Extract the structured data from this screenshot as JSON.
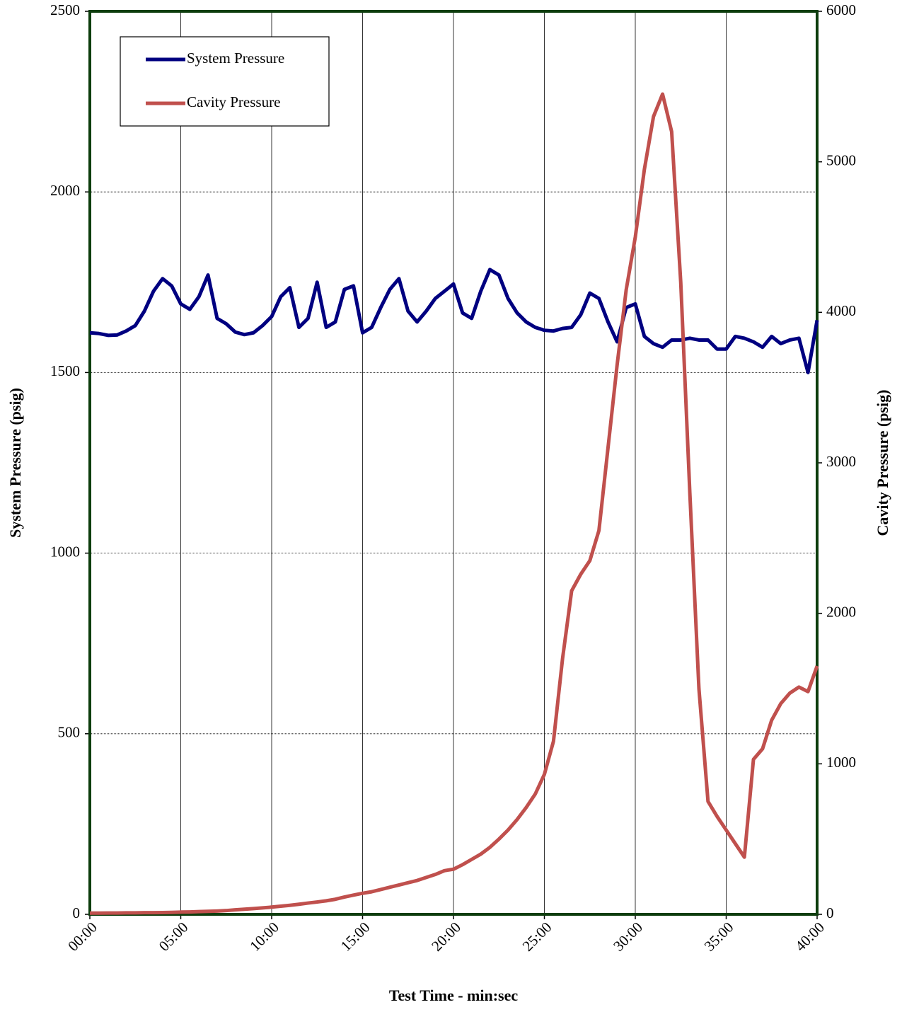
{
  "chart_data": {
    "type": "line",
    "xlabel": "Test Time - min:sec",
    "ylabel": "System Pressure (psig)",
    "y2label": "Cavity Pressure (psig)",
    "x": [
      0,
      0.5,
      1,
      1.5,
      2,
      2.5,
      3,
      3.5,
      4,
      4.5,
      5,
      5.5,
      6,
      6.5,
      7,
      7.5,
      8,
      8.5,
      9,
      9.5,
      10,
      10.5,
      11,
      11.5,
      12,
      12.5,
      13,
      13.5,
      14,
      14.5,
      15,
      15.5,
      16,
      16.5,
      17,
      17.5,
      18,
      18.5,
      19,
      19.5,
      20,
      20.5,
      21,
      21.5,
      22,
      22.5,
      23,
      23.5,
      24,
      24.5,
      25,
      25.5,
      26,
      26.5,
      27,
      27.5,
      28,
      28.5,
      29,
      29.5,
      30,
      30.5,
      31,
      31.5,
      32,
      32.5,
      33,
      33.5,
      34,
      34.5,
      35,
      35.5,
      36,
      36.5,
      37,
      37.5,
      38,
      38.5,
      39,
      39.5,
      40
    ],
    "series": [
      {
        "name": "System Pressure",
        "color": "#000080",
        "axis": "y",
        "values": [
          1610,
          1608,
          1603,
          1604,
          1615,
          1630,
          1670,
          1725,
          1760,
          1740,
          1690,
          1675,
          1710,
          1770,
          1650,
          1635,
          1612,
          1605,
          1610,
          1630,
          1655,
          1710,
          1735,
          1625,
          1650,
          1750,
          1625,
          1640,
          1730,
          1740,
          1610,
          1625,
          1680,
          1730,
          1760,
          1670,
          1640,
          1670,
          1705,
          1725,
          1745,
          1665,
          1650,
          1725,
          1785,
          1770,
          1705,
          1665,
          1640,
          1625,
          1617,
          1615,
          1622,
          1625,
          1660,
          1720,
          1705,
          1640,
          1585,
          1680,
          1690,
          1600,
          1580,
          1570,
          1590,
          1590,
          1595,
          1590,
          1590,
          1565,
          1565,
          1600,
          1595,
          1585,
          1570,
          1600,
          1580,
          1590,
          1595,
          1500,
          1645
        ]
      },
      {
        "name": "Cavity Pressure",
        "color": "#c0504d",
        "axis": "y2",
        "values": [
          8,
          8,
          9,
          9,
          10,
          10,
          11,
          11,
          12,
          13,
          15,
          16,
          18,
          20,
          22,
          25,
          30,
          34,
          38,
          43,
          48,
          54,
          60,
          67,
          75,
          82,
          90,
          100,
          115,
          128,
          140,
          150,
          165,
          180,
          195,
          210,
          225,
          245,
          265,
          290,
          300,
          330,
          365,
          400,
          445,
          500,
          560,
          630,
          710,
          800,
          930,
          1150,
          1700,
          2150,
          2260,
          2350,
          2550,
          3100,
          3650,
          4150,
          4500,
          4950,
          5300,
          5450,
          5200,
          4200,
          2800,
          1500,
          750,
          650,
          560,
          470,
          380,
          1030,
          1100,
          1290,
          1400,
          1470,
          1510,
          1480,
          1650
        ]
      }
    ],
    "xlim": [
      0,
      40
    ],
    "xticks": [
      {
        "value": 0,
        "label": "00:00"
      },
      {
        "value": 5,
        "label": "05:00"
      },
      {
        "value": 10,
        "label": "10:00"
      },
      {
        "value": 15,
        "label": "15:00"
      },
      {
        "value": 20,
        "label": "20:00"
      },
      {
        "value": 25,
        "label": "25:00"
      },
      {
        "value": 30,
        "label": "30:00"
      },
      {
        "value": 35,
        "label": "35:00"
      },
      {
        "value": 40,
        "label": "40:00"
      }
    ],
    "ylim": [
      0,
      2500
    ],
    "yticks": [
      0,
      500,
      1000,
      1500,
      2000,
      2500
    ],
    "y2lim": [
      0,
      6000
    ],
    "y2ticks": [
      0,
      1000,
      2000,
      3000,
      4000,
      5000,
      6000
    ],
    "grid": true,
    "legend": "top-left"
  }
}
